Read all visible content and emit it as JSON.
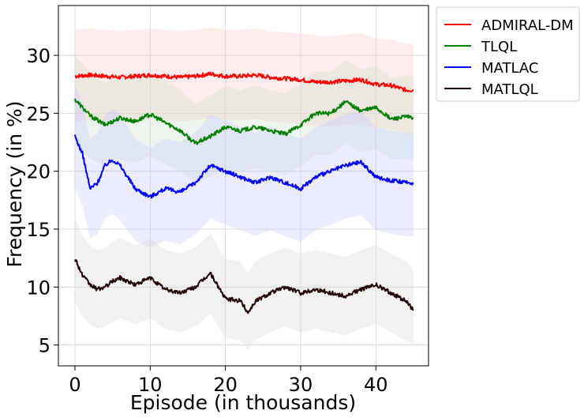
{
  "chart_data": {
    "type": "line",
    "title": "",
    "xlabel": "Episode (in thousands)",
    "ylabel": "Frequency (in %)",
    "xlim": [
      -2.2,
      47
    ],
    "ylim": [
      3.2,
      34.3
    ],
    "xticks": [
      0,
      10,
      20,
      30,
      40
    ],
    "yticks": [
      5,
      10,
      15,
      20,
      25,
      30
    ],
    "grid": true,
    "legend_position": "outside-top-right",
    "series": [
      {
        "name": "ADMIRAL-DM",
        "color": "#ff0000",
        "band_color": "#ffcccc",
        "x": [
          0,
          2,
          4,
          6,
          8,
          10,
          12,
          14,
          16,
          18,
          20,
          22,
          24,
          26,
          28,
          30,
          32,
          34,
          36,
          38,
          40,
          42,
          44,
          45
        ],
        "y": [
          28.2,
          28.3,
          28.2,
          28.1,
          28.2,
          28.3,
          28.2,
          28.1,
          28.2,
          28.4,
          28.2,
          28.2,
          28.3,
          28.1,
          28.0,
          27.9,
          27.7,
          27.7,
          27.8,
          27.9,
          27.5,
          27.4,
          27.0,
          27.0
        ],
        "lower": [
          24.3,
          24.4,
          24.4,
          24.3,
          24.4,
          24.5,
          24.4,
          24.3,
          24.4,
          24.6,
          24.4,
          24.4,
          24.5,
          24.3,
          24.2,
          24.1,
          23.9,
          23.9,
          24.0,
          24.1,
          23.7,
          23.6,
          23.2,
          23.2
        ],
        "upper": [
          32.2,
          32.3,
          32.2,
          32.1,
          32.2,
          32.3,
          32.2,
          32.1,
          32.2,
          32.4,
          32.2,
          32.2,
          32.3,
          32.1,
          32.0,
          31.9,
          31.7,
          31.7,
          31.8,
          31.9,
          31.5,
          31.4,
          31.0,
          31.0
        ]
      },
      {
        "name": "TLQL",
        "color": "#008000",
        "band_color": "#c8e0c8",
        "x": [
          0,
          1,
          2,
          4,
          6,
          8,
          10,
          12,
          14,
          16,
          18,
          20,
          22,
          24,
          26,
          28,
          30,
          32,
          34,
          36,
          38,
          40,
          42,
          44,
          45
        ],
        "y": [
          26.2,
          25.5,
          24.8,
          24.0,
          24.6,
          24.3,
          24.9,
          24.2,
          23.5,
          22.4,
          23.0,
          23.8,
          23.5,
          23.8,
          23.5,
          23.2,
          24.0,
          25.0,
          25.0,
          26.0,
          25.2,
          25.5,
          24.5,
          24.7,
          24.6
        ],
        "lower": [
          22.3,
          21.7,
          21.1,
          20.4,
          21.0,
          20.7,
          21.3,
          20.6,
          20.0,
          19.0,
          19.5,
          20.2,
          20.0,
          20.2,
          20.0,
          19.7,
          20.4,
          21.4,
          21.4,
          22.4,
          21.6,
          21.9,
          21.0,
          21.1,
          21.0
        ],
        "upper": [
          30.0,
          29.3,
          28.5,
          27.6,
          28.2,
          27.9,
          28.5,
          27.8,
          27.0,
          25.8,
          26.5,
          27.4,
          27.0,
          27.4,
          27.0,
          26.7,
          27.6,
          28.6,
          28.6,
          29.6,
          28.8,
          29.1,
          28.0,
          28.3,
          28.2
        ]
      },
      {
        "name": "MATLAC",
        "color": "#0000ff",
        "band_color": "#c8c8ff",
        "x": [
          0,
          1,
          2,
          3,
          4,
          5,
          6,
          8,
          10,
          12,
          14,
          16,
          18,
          20,
          22,
          24,
          26,
          28,
          30,
          32,
          34,
          36,
          38,
          40,
          42,
          44,
          45
        ],
        "y": [
          23.0,
          21.5,
          18.5,
          19.0,
          20.5,
          21.0,
          20.5,
          18.5,
          17.8,
          18.5,
          18.2,
          19.0,
          20.5,
          20.0,
          19.5,
          19.0,
          19.5,
          19.0,
          18.5,
          19.5,
          20.0,
          20.5,
          20.8,
          19.5,
          19.2,
          19.0,
          19.0
        ],
        "lower": [
          18.5,
          17.0,
          14.2,
          14.6,
          15.9,
          16.3,
          15.8,
          14.0,
          13.4,
          14.0,
          13.7,
          14.5,
          15.9,
          15.4,
          14.9,
          14.4,
          14.9,
          14.4,
          13.9,
          14.9,
          15.4,
          15.9,
          16.2,
          14.9,
          14.6,
          14.4,
          14.4
        ],
        "upper": [
          27.5,
          25.8,
          22.8,
          23.3,
          24.9,
          25.4,
          24.9,
          22.8,
          22.0,
          22.8,
          22.5,
          23.3,
          24.9,
          24.4,
          23.8,
          23.3,
          23.8,
          23.3,
          22.8,
          23.8,
          24.4,
          24.9,
          25.2,
          23.8,
          23.5,
          23.3,
          23.3
        ]
      },
      {
        "name": "MATLQL",
        "color": "#200000",
        "band_color": "#d8d8d8",
        "x": [
          0,
          1,
          2,
          3,
          4,
          5,
          6,
          8,
          10,
          12,
          14,
          16,
          18,
          20,
          22,
          23,
          24,
          26,
          28,
          30,
          32,
          34,
          36,
          38,
          40,
          42,
          44,
          45
        ],
        "y": [
          12.5,
          11.0,
          10.2,
          9.8,
          10.0,
          10.5,
          10.8,
          10.2,
          10.8,
          9.8,
          9.5,
          10.0,
          11.2,
          9.0,
          8.8,
          7.8,
          8.8,
          9.5,
          10.0,
          9.5,
          9.8,
          9.5,
          9.2,
          9.8,
          10.2,
          9.5,
          8.8,
          8.0
        ],
        "lower": [
          8.8,
          7.5,
          6.8,
          6.4,
          6.6,
          7.0,
          7.3,
          6.8,
          7.3,
          6.4,
          6.1,
          6.6,
          7.7,
          5.6,
          5.4,
          4.6,
          5.4,
          6.1,
          6.6,
          6.1,
          6.4,
          6.1,
          5.8,
          6.4,
          6.8,
          6.1,
          5.4,
          5.1
        ],
        "upper": [
          16.0,
          14.5,
          13.6,
          13.2,
          13.4,
          13.9,
          14.2,
          13.6,
          14.2,
          13.2,
          12.9,
          13.4,
          14.6,
          12.4,
          12.2,
          11.2,
          12.2,
          12.9,
          13.4,
          12.9,
          13.2,
          12.9,
          12.6,
          13.2,
          13.6,
          12.9,
          12.2,
          11.5
        ]
      }
    ]
  }
}
